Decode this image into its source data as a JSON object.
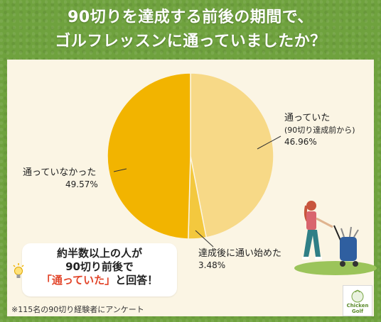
{
  "title": {
    "line1": "90切りを達成する前後の期間で、",
    "line2": "ゴルフレッスンに通っていましたか？"
  },
  "chart_data": {
    "type": "pie",
    "slices": [
      {
        "label": "通っていた",
        "sublabel": "(90切り達成前から)",
        "value": 46.96,
        "value_text": "46.96%",
        "color": "#f7d987"
      },
      {
        "label": "達成後に通い始めた",
        "value": 3.48,
        "value_text": "3.48%",
        "color": "#f3c83e"
      },
      {
        "label": "通っていなかった",
        "value": 49.57,
        "value_text": "49.57%",
        "color": "#f2b400"
      }
    ]
  },
  "callout": {
    "line1": "約半数以上の人が",
    "line2": "90切り前後で",
    "highlight": "「通っていた」",
    "line3_tail": "と回答！"
  },
  "note": "※115名の90切り経験者にアンケート",
  "logo": {
    "line1": "Chicken",
    "line2": "Golf"
  },
  "colors": {
    "background": "#6fa23e",
    "panel": "#fbf5e4",
    "highlight": "#e2452a"
  }
}
